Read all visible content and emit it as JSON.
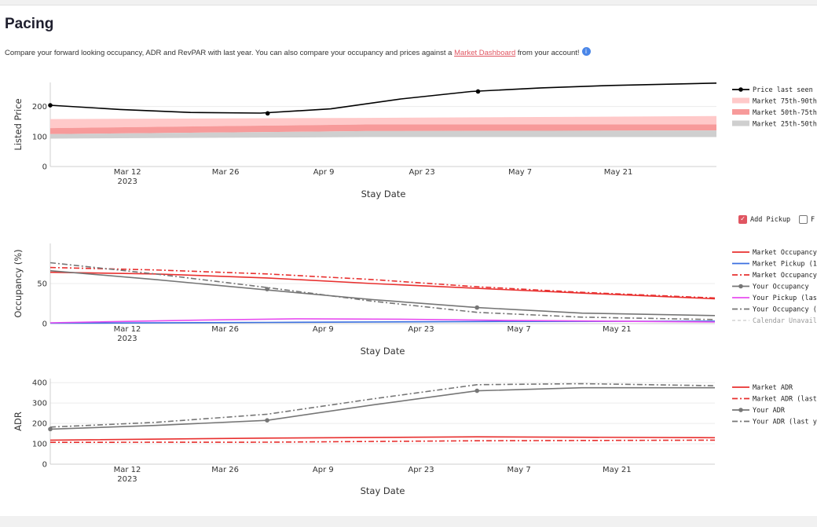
{
  "page": {
    "title": "Pacing",
    "description_before": "Compare your forward looking occupancy, ADR and RevPAR with last year. You can also compare your occupancy and prices against a ",
    "link_text": "Market Dashboard",
    "description_after": " from your account!",
    "info_icon": "i"
  },
  "controls": {
    "add_pickup_label": "Add Pickup",
    "add_pickup_checked": true,
    "second_label": "F",
    "second_checked": false
  },
  "colors": {
    "price": "#000000",
    "p75_90": "#ffc9c9",
    "p50_75": "#f79a9a",
    "p25_50": "#cfcfcf",
    "market": "#e8302f",
    "market_pickup": "#3a6fe0",
    "your": "#767676",
    "your_pickup": "#e84ef0",
    "calendar": "#d9d9d9",
    "accent": "#e05561"
  },
  "chart_data": [
    {
      "type": "line",
      "name": "price",
      "xlabel": "Stay Date",
      "ylabel": "Listed Price",
      "xlim": [
        "2023-03-01",
        "2023-06-04"
      ],
      "ylim": [
        0,
        280
      ],
      "yticks": [
        0,
        100,
        200
      ],
      "xticks": [
        {
          "date": "2023-03-12",
          "label": "Mar 12",
          "sub": "2023"
        },
        {
          "date": "2023-03-26",
          "label": "Mar 26",
          "sub": ""
        },
        {
          "date": "2023-04-09",
          "label": "Apr 9",
          "sub": ""
        },
        {
          "date": "2023-04-23",
          "label": "Apr 23",
          "sub": ""
        },
        {
          "date": "2023-05-07",
          "label": "May 7",
          "sub": ""
        },
        {
          "date": "2023-05-21",
          "label": "May 21",
          "sub": ""
        }
      ],
      "series": [
        {
          "name": "Price last seen",
          "style": "solid-marker",
          "color": "#000000",
          "x": [
            "2023-03-01",
            "2023-03-11",
            "2023-03-21",
            "2023-03-31",
            "2023-04-10",
            "2023-04-20",
            "2023-04-30",
            "2023-05-10",
            "2023-05-20",
            "2023-06-04"
          ],
          "y": [
            204,
            190,
            180,
            178,
            192,
            225,
            250,
            262,
            270,
            278
          ],
          "markers": [
            [
              "2023-03-01",
              204
            ],
            [
              "2023-04-01",
              177
            ],
            [
              "2023-05-01",
              250
            ]
          ]
        }
      ],
      "bands": [
        {
          "name": "Market 75th-90th",
          "color": "#ffc9c9",
          "x": [
            "2023-03-01",
            "2023-04-15",
            "2023-06-04"
          ],
          "lower": [
            128,
            140,
            140
          ],
          "upper": [
            158,
            162,
            168
          ]
        },
        {
          "name": "Market 50th-75th",
          "color": "#f79a9a",
          "x": [
            "2023-03-01",
            "2023-04-15",
            "2023-06-04"
          ],
          "lower": [
            108,
            118,
            120
          ],
          "upper": [
            128,
            140,
            140
          ]
        },
        {
          "name": "Market 25th-50th",
          "color": "#cfcfcf",
          "x": [
            "2023-03-01",
            "2023-04-15",
            "2023-06-04"
          ],
          "lower": [
            93,
            98,
            98
          ],
          "upper": [
            108,
            118,
            120
          ]
        }
      ]
    },
    {
      "type": "line",
      "name": "occupancy",
      "xlabel": "Stay Date",
      "ylabel": "Occupancy (%)",
      "xlim": [
        "2023-03-01",
        "2023-06-04"
      ],
      "ylim": [
        0,
        100
      ],
      "yticks": [
        0,
        50
      ],
      "xticks": [
        {
          "date": "2023-03-12",
          "label": "Mar 12",
          "sub": "2023"
        },
        {
          "date": "2023-03-26",
          "label": "Mar 26",
          "sub": ""
        },
        {
          "date": "2023-04-09",
          "label": "Apr 9",
          "sub": ""
        },
        {
          "date": "2023-04-23",
          "label": "Apr 23",
          "sub": ""
        },
        {
          "date": "2023-05-07",
          "label": "May 7",
          "sub": ""
        },
        {
          "date": "2023-05-21",
          "label": "May 21",
          "sub": ""
        }
      ],
      "series": [
        {
          "name": "Market Occupancy",
          "style": "solid",
          "color": "#e8302f",
          "x": [
            "2023-03-01",
            "2023-03-16",
            "2023-04-01",
            "2023-04-16",
            "2023-05-01",
            "2023-05-16",
            "2023-06-04"
          ],
          "y": [
            64,
            62,
            57,
            50,
            44,
            38,
            31
          ]
        },
        {
          "name": "Market Pickup (1",
          "style": "solid",
          "color": "#3a6fe0",
          "x": [
            "2023-03-01",
            "2023-04-01",
            "2023-05-01",
            "2023-06-04"
          ],
          "y": [
            0.5,
            1.5,
            2.5,
            3
          ]
        },
        {
          "name": "Market Occupancy",
          "style": "dashdot",
          "color": "#e8302f",
          "x": [
            "2023-03-01",
            "2023-03-16",
            "2023-04-01",
            "2023-04-16",
            "2023-05-01",
            "2023-05-16",
            "2023-06-04"
          ],
          "y": [
            70,
            67,
            62,
            55,
            46,
            39,
            32
          ]
        },
        {
          "name": "Your Occupancy",
          "style": "solid-marker",
          "color": "#767676",
          "x": [
            "2023-03-01",
            "2023-03-16",
            "2023-04-01",
            "2023-04-16",
            "2023-05-01",
            "2023-05-16",
            "2023-06-04"
          ],
          "y": [
            66,
            55,
            42,
            30,
            20,
            13,
            10
          ],
          "markers": [
            [
              "2023-04-01",
              43
            ],
            [
              "2023-05-01",
              20
            ]
          ]
        },
        {
          "name": "Your Pickup (last",
          "style": "solid",
          "color": "#e84ef0",
          "x": [
            "2023-03-01",
            "2023-03-20",
            "2023-04-05",
            "2023-04-20",
            "2023-05-05",
            "2023-05-20",
            "2023-06-04"
          ],
          "y": [
            1,
            4,
            6,
            5.5,
            4,
            3,
            2
          ]
        },
        {
          "name": "Your Occupancy (l",
          "style": "dashdot",
          "color": "#767676",
          "x": [
            "2023-03-01",
            "2023-03-16",
            "2023-04-01",
            "2023-04-16",
            "2023-05-01",
            "2023-05-16",
            "2023-06-04"
          ],
          "y": [
            76,
            62,
            45,
            28,
            14,
            8,
            5
          ]
        }
      ],
      "legend_extra": {
        "name": "Calendar Unavaila",
        "style": "dashed-faint",
        "color": "#d9d9d9"
      }
    },
    {
      "type": "line",
      "name": "adr",
      "xlabel": "Stay Date",
      "ylabel": "ADR",
      "xlim": [
        "2023-03-01",
        "2023-06-04"
      ],
      "ylim": [
        0,
        420
      ],
      "yticks": [
        0,
        100,
        200,
        300,
        400
      ],
      "xticks": [
        {
          "date": "2023-03-12",
          "label": "Mar 12",
          "sub": "2023"
        },
        {
          "date": "2023-03-26",
          "label": "Mar 26",
          "sub": ""
        },
        {
          "date": "2023-04-09",
          "label": "Apr 9",
          "sub": ""
        },
        {
          "date": "2023-04-23",
          "label": "Apr 23",
          "sub": ""
        },
        {
          "date": "2023-05-07",
          "label": "May 7",
          "sub": ""
        },
        {
          "date": "2023-05-21",
          "label": "May 21",
          "sub": ""
        }
      ],
      "series": [
        {
          "name": "Market ADR",
          "style": "solid",
          "color": "#e8302f",
          "x": [
            "2023-03-01",
            "2023-04-01",
            "2023-05-01",
            "2023-06-04"
          ],
          "y": [
            118,
            128,
            134,
            130
          ]
        },
        {
          "name": "Market ADR (last",
          "style": "dashdot",
          "color": "#e8302f",
          "x": [
            "2023-03-01",
            "2023-04-01",
            "2023-05-01",
            "2023-06-04"
          ],
          "y": [
            107,
            108,
            115,
            118
          ]
        },
        {
          "name": "Your ADR",
          "style": "solid-marker",
          "color": "#767676",
          "x": [
            "2023-03-01",
            "2023-03-16",
            "2023-04-01",
            "2023-04-16",
            "2023-05-01",
            "2023-05-16",
            "2023-06-04"
          ],
          "y": [
            172,
            190,
            215,
            290,
            360,
            375,
            375
          ],
          "markers": [
            [
              "2023-03-01",
              172
            ],
            [
              "2023-04-01",
              215
            ],
            [
              "2023-05-01",
              360
            ]
          ]
        },
        {
          "name": "Your ADR (last ye",
          "style": "dashdot",
          "color": "#767676",
          "x": [
            "2023-03-01",
            "2023-03-16",
            "2023-04-01",
            "2023-04-16",
            "2023-05-01",
            "2023-05-16",
            "2023-06-04"
          ],
          "y": [
            182,
            205,
            245,
            320,
            390,
            395,
            385
          ]
        }
      ]
    }
  ]
}
